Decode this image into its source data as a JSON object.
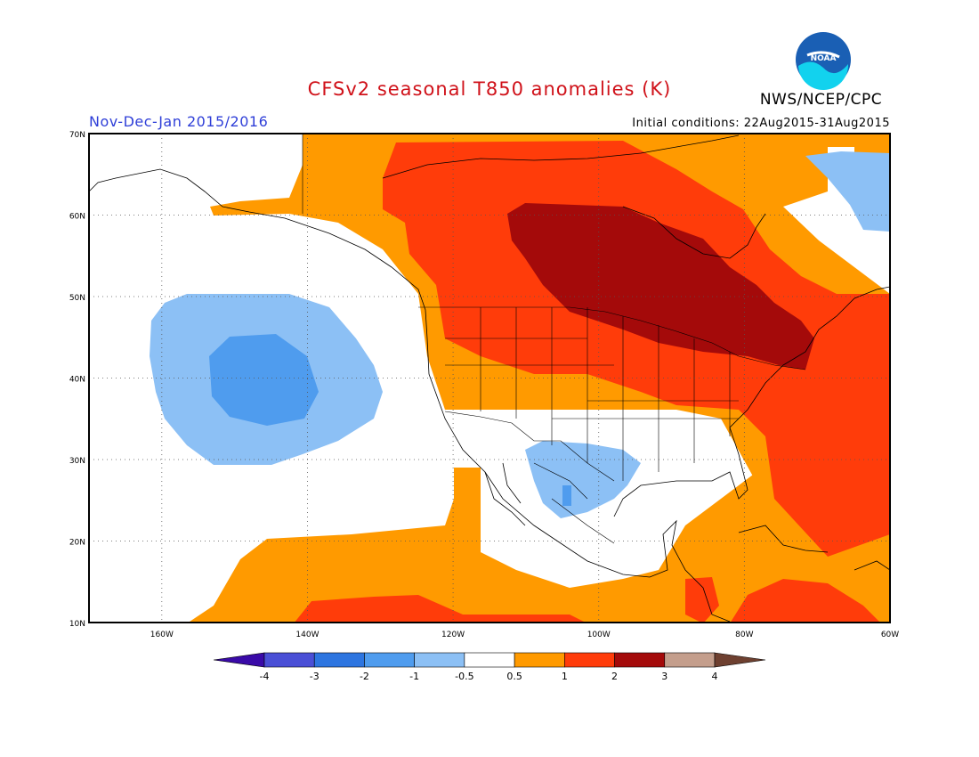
{
  "header": {
    "title": "CFSv2 seasonal T850 anomalies (K)",
    "period": "Nov-Dec-Jan 2015/2016",
    "initial_conditions": "Initial conditions: 22Aug2015-31Aug2015",
    "agency": "NWS/NCEP/CPC",
    "logo_text": "NOAA"
  },
  "map": {
    "lat_labels": [
      "70N",
      "60N",
      "50N",
      "40N",
      "30N",
      "20N",
      "10N"
    ],
    "lon_labels": [
      "160W",
      "140W",
      "120W",
      "100W",
      "80W",
      "60W"
    ],
    "lat_range": [
      10,
      70
    ],
    "lon_range": [
      -170,
      -60
    ],
    "grid": "dotted"
  },
  "legend": {
    "tick_labels": [
      "-4",
      "-3",
      "-2",
      "-1",
      "-0.5",
      "0.5",
      "1",
      "2",
      "3",
      "4"
    ],
    "colors": [
      "#3a0aa8",
      "#4a4fd6",
      "#2d75e0",
      "#4f9cee",
      "#8cc0f5",
      "#ffffff",
      "#ff9a00",
      "#ff3c0a",
      "#a40a0a",
      "#c49e8c",
      "#6e4030"
    ]
  },
  "colors": {
    "title": "#d0121a",
    "period": "#2f3fd8",
    "logo_blue": "#1a5fb4",
    "logo_cyan": "#12d2ee"
  }
}
